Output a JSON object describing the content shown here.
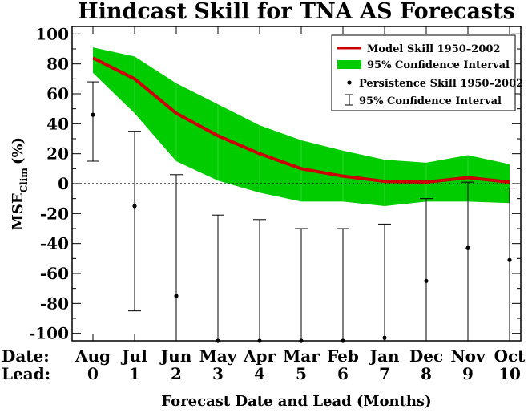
{
  "chart_data": {
    "type": "line",
    "title": "Hindcast Skill for TNA AS Forecasts",
    "xlabel": "Forecast Date and Lead (Months)",
    "ylabel_main": "MSE",
    "ylabel_sub": "Clim",
    "ylabel_unit": "(%)",
    "row_labels": {
      "date": "Date:",
      "lead": "Lead:"
    },
    "categories": [
      "Aug",
      "Jul",
      "Jun",
      "May",
      "Apr",
      "Mar",
      "Feb",
      "Jan",
      "Dec",
      "Nov",
      "Oct"
    ],
    "leads": [
      "0",
      "1",
      "2",
      "3",
      "4",
      "5",
      "6",
      "7",
      "8",
      "9",
      "10"
    ],
    "ylim": [
      -105,
      105
    ],
    "yticks": [
      100,
      80,
      60,
      40,
      20,
      0,
      -20,
      -40,
      -60,
      -80,
      -100
    ],
    "series": [
      {
        "name": "Model Skill 1950–2002",
        "color": "#cc0000",
        "values": [
          84,
          70,
          47,
          32,
          20,
          10,
          5,
          1.5,
          1,
          4,
          1
        ]
      },
      {
        "name": "95% Confidence Interval",
        "color": "#00cc00",
        "upper": [
          91,
          85,
          67,
          53,
          39,
          29,
          22,
          16,
          14,
          19,
          13
        ],
        "lower": [
          74,
          47,
          15,
          2,
          -6,
          -12,
          -12,
          -15,
          -12,
          -12,
          -13
        ]
      },
      {
        "name": "Persistence Skill 1950–2002",
        "color": "#000000",
        "values": [
          46,
          -15,
          -75,
          -105,
          -105,
          -105,
          -105,
          -103,
          -65,
          -43,
          -51
        ]
      },
      {
        "name": "95% Confidence Interval",
        "color": "#000000",
        "upper": [
          68,
          35,
          6,
          -21,
          -24,
          -30,
          -30,
          -27,
          -10,
          1,
          -3
        ],
        "lower": [
          15,
          -85,
          -105,
          -105,
          -105,
          -105,
          -105,
          -105,
          -105,
          -105,
          -105
        ]
      }
    ],
    "zero_line": "dotted",
    "grid": false,
    "legend_position": "top-right"
  }
}
